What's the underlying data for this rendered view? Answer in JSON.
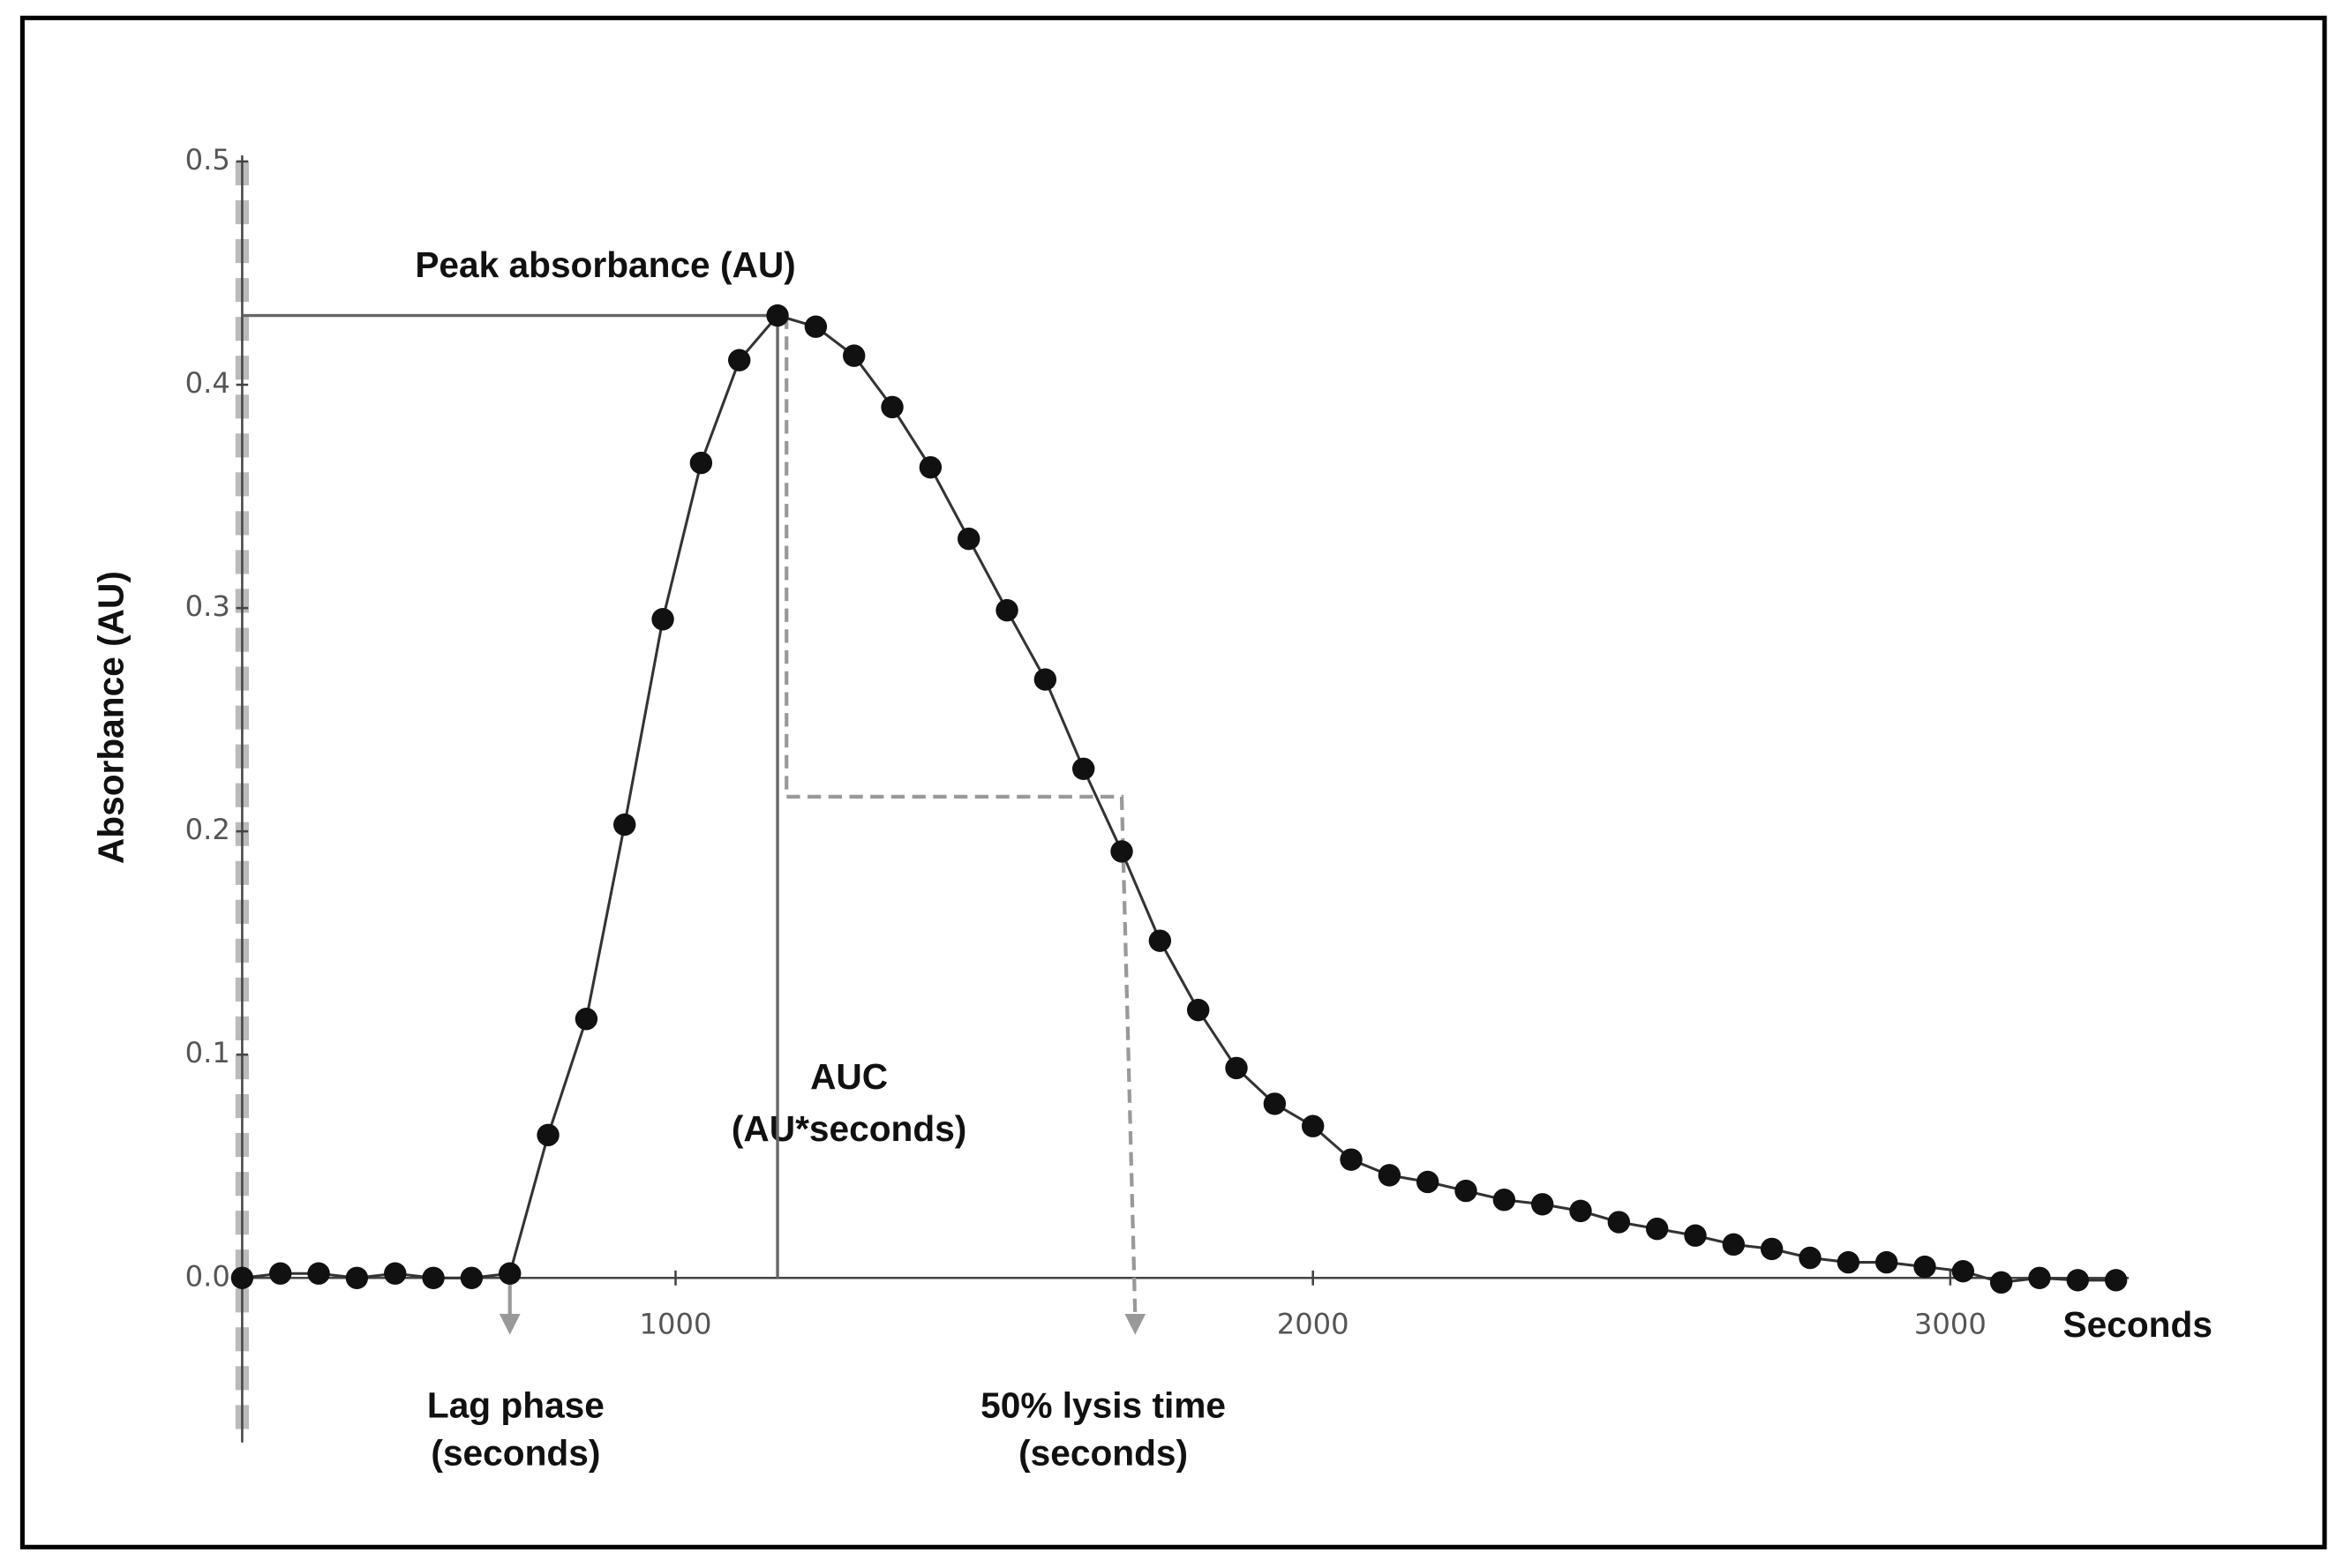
{
  "chart_data": {
    "type": "line",
    "x_label": "Seconds",
    "y_label": "Absorbance (AU)",
    "x": [
      320,
      380,
      440,
      500,
      560,
      620,
      680,
      740,
      800,
      860,
      920,
      980,
      1040,
      1100,
      1160,
      1220,
      1280,
      1340,
      1400,
      1460,
      1520,
      1580,
      1640,
      1700,
      1760,
      1820,
      1880,
      1940,
      2000,
      2060,
      2120,
      2180,
      2240,
      2300,
      2360,
      2420,
      2480,
      2540,
      2600,
      2660,
      2720,
      2780,
      2840,
      2900,
      2960,
      3020,
      3080,
      3140,
      3200,
      3260
    ],
    "series": [
      {
        "name": "Absorbance",
        "color": "#111111",
        "values": [
          0,
          0.002,
          0.002,
          0,
          0.002,
          0,
          0,
          0.002,
          0.064,
          0.116,
          0.203,
          0.295,
          0.365,
          0.411,
          0.431,
          0.426,
          0.413,
          0.39,
          0.363,
          0.331,
          0.299,
          0.268,
          0.228,
          0.191,
          0.151,
          0.12,
          0.094,
          0.078,
          0.068,
          0.053,
          0.046,
          0.043,
          0.039,
          0.035,
          0.033,
          0.03,
          0.025,
          0.022,
          0.019,
          0.015,
          0.013,
          0.009,
          0.007,
          0.007,
          0.005,
          0.003,
          -0.002,
          0,
          -0.001,
          -0.001
        ]
      }
    ],
    "xlim": [
      320,
      3280
    ],
    "ylim": [
      -0.075,
      0.5
    ],
    "xticks": [
      1000,
      2000,
      3000
    ],
    "yticks": [
      {
        "value": 0,
        "label": "0.0"
      },
      0.1,
      0.2,
      0.3,
      0.4,
      0.5
    ],
    "annotations": {
      "peak": "Peak absorbance (AU)",
      "auc": [
        "AUC",
        "(AU*seconds)"
      ],
      "lag": [
        "Lag phase",
        "(seconds)"
      ],
      "lysis": [
        "50% lysis time",
        "(seconds)"
      ]
    }
  }
}
